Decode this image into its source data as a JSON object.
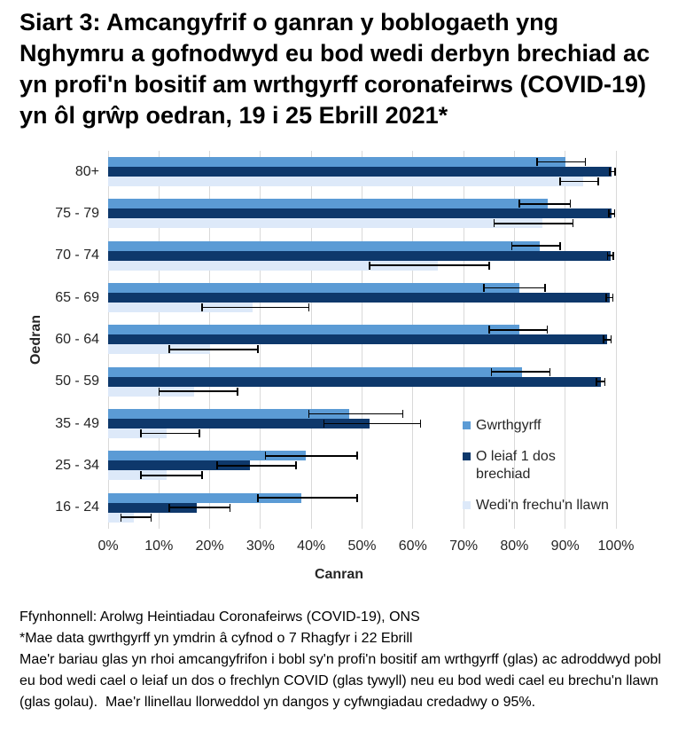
{
  "title": "Siart 3: Amcangyfrif o ganran y boblogaeth yng Nghymru a gofnodwyd eu bod wedi derbyn brechiad ac yn profi'n bositif am wrthgyrff coronafeirws (COVID-19) yn ôl grŵp oedran, 19 i 25 Ebrill 2021*",
  "colors": {
    "antibodies": "#5B9BD5",
    "dose1": "#0E386B",
    "fully_vaccinated": "#DDE9F9",
    "gridline": "#D9D9D9",
    "error_bar": "#000000"
  },
  "chart_data": {
    "type": "bar",
    "orientation": "horizontal",
    "xlabel": "Canran",
    "ylabel": "Oedran",
    "xlim": [
      0,
      100
    ],
    "x_ticks": [
      "0%",
      "10%",
      "20%",
      "30%",
      "40%",
      "50%",
      "60%",
      "70%",
      "80%",
      "90%",
      "100%"
    ],
    "grid": true,
    "legend_position": "inside-right",
    "ci_note": "Mae'r llinellau llorweddol yn dangos y cyfwngiadau credadwy o 95%",
    "series_meta": [
      {
        "name": "Gwrthgyrff",
        "color": "#5B9BD5",
        "label_lines": [
          "Gwrthgyrff"
        ]
      },
      {
        "name": "O leiaf 1 dos brechiad",
        "color": "#0E386B",
        "label_lines": [
          "O leiaf 1 dos",
          "brechiad"
        ]
      },
      {
        "name": "Wedi'n frechu'n llawn",
        "color": "#DDE9F9",
        "label_lines": [
          "Wedi'n frechu'n llawn"
        ]
      }
    ],
    "categories": [
      "80+",
      "75 - 79",
      "70 - 74",
      "65 - 69",
      "60 - 64",
      "50 - 59",
      "35 - 49",
      "25 - 34",
      "16 - 24"
    ],
    "rows": [
      {
        "category": "80+",
        "bars": [
          {
            "series": "Gwrthgyrff",
            "value": 90.0,
            "ci_low": 84.5,
            "ci_high": 94.0
          },
          {
            "series": "O leiaf 1 dos brechiad",
            "value": 99.2,
            "ci_low": 98.8,
            "ci_high": 99.8
          },
          {
            "series": "Wedi'n frechu'n llawn",
            "value": 93.5,
            "ci_low": 89.0,
            "ci_high": 96.5
          }
        ]
      },
      {
        "category": "75 - 79",
        "bars": [
          {
            "series": "Gwrthgyrff",
            "value": 86.5,
            "ci_low": 81.0,
            "ci_high": 91.0
          },
          {
            "series": "O leiaf 1 dos brechiad",
            "value": 99.1,
            "ci_low": 98.6,
            "ci_high": 99.7
          },
          {
            "series": "Wedi'n frechu'n llawn",
            "value": 85.5,
            "ci_low": 76.0,
            "ci_high": 91.5
          }
        ]
      },
      {
        "category": "70 - 74",
        "bars": [
          {
            "series": "Gwrthgyrff",
            "value": 85.0,
            "ci_low": 79.5,
            "ci_high": 89.0
          },
          {
            "series": "O leiaf 1 dos brechiad",
            "value": 98.9,
            "ci_low": 98.3,
            "ci_high": 99.5
          },
          {
            "series": "Wedi'n frechu'n llawn",
            "value": 65.0,
            "ci_low": 51.5,
            "ci_high": 75.0
          }
        ]
      },
      {
        "category": "65 - 69",
        "bars": [
          {
            "series": "Gwrthgyrff",
            "value": 81.0,
            "ci_low": 74.0,
            "ci_high": 86.0
          },
          {
            "series": "O leiaf 1 dos brechiad",
            "value": 98.8,
            "ci_low": 98.1,
            "ci_high": 99.4
          },
          {
            "series": "Wedi'n frechu'n llawn",
            "value": 28.5,
            "ci_low": 18.5,
            "ci_high": 39.5
          }
        ]
      },
      {
        "category": "60 - 64",
        "bars": [
          {
            "series": "Gwrthgyrff",
            "value": 81.0,
            "ci_low": 75.0,
            "ci_high": 86.5
          },
          {
            "series": "O leiaf 1 dos brechiad",
            "value": 98.3,
            "ci_low": 97.6,
            "ci_high": 99.0
          },
          {
            "series": "Wedi'n frechu'n llawn",
            "value": 20.0,
            "ci_low": 12.0,
            "ci_high": 29.5
          }
        ]
      },
      {
        "category": "50 - 59",
        "bars": [
          {
            "series": "Gwrthgyrff",
            "value": 81.5,
            "ci_low": 75.5,
            "ci_high": 87.0
          },
          {
            "series": "O leiaf 1 dos brechiad",
            "value": 97.0,
            "ci_low": 96.2,
            "ci_high": 97.8
          },
          {
            "series": "Wedi'n frechu'n llawn",
            "value": 17.0,
            "ci_low": 10.0,
            "ci_high": 25.5
          }
        ]
      },
      {
        "category": "35 - 49",
        "bars": [
          {
            "series": "Gwrthgyrff",
            "value": 47.5,
            "ci_low": 39.5,
            "ci_high": 58.0
          },
          {
            "series": "O leiaf 1 dos brechiad",
            "value": 51.5,
            "ci_low": 42.5,
            "ci_high": 61.5
          },
          {
            "series": "Wedi'n frechu'n llawn",
            "value": 11.5,
            "ci_low": 6.5,
            "ci_high": 18.0
          }
        ]
      },
      {
        "category": "25 - 34",
        "bars": [
          {
            "series": "Gwrthgyrff",
            "value": 39.0,
            "ci_low": 31.0,
            "ci_high": 49.0
          },
          {
            "series": "O leiaf 1 dos brechiad",
            "value": 28.0,
            "ci_low": 21.5,
            "ci_high": 37.0
          },
          {
            "series": "Wedi'n frechu'n llawn",
            "value": 11.5,
            "ci_low": 6.5,
            "ci_high": 18.5
          }
        ]
      },
      {
        "category": "16 - 24",
        "bars": [
          {
            "series": "Gwrthgyrff",
            "value": 38.0,
            "ci_low": 29.5,
            "ci_high": 49.0
          },
          {
            "series": "O leiaf 1 dos brechiad",
            "value": 17.5,
            "ci_low": 12.0,
            "ci_high": 24.0
          },
          {
            "series": "Wedi'n frechu'n llawn",
            "value": 5.0,
            "ci_low": 2.5,
            "ci_high": 8.5
          }
        ]
      }
    ]
  },
  "footer": {
    "lines": [
      "Ffynhonnell: Arolwg Heintiadau Coronafeirws (COVID-19), ONS",
      "*Mae data gwrthgyrff yn ymdrin â cyfnod o 7 Rhagfyr i 22 Ebrill",
      "Mae'r bariau glas yn rhoi amcangyfrifon i bobl sy'n profi'n bositif am wrthgyrff (glas) ac adroddwyd pobl eu bod wedi cael o leiaf un dos o frechlyn COVID (glas tywyll) neu eu bod wedi cael eu brechu'n llawn (glas golau).  Mae'r llinellau llorweddol yn dangos y cyfwngiadau credadwy o 95%."
    ]
  }
}
